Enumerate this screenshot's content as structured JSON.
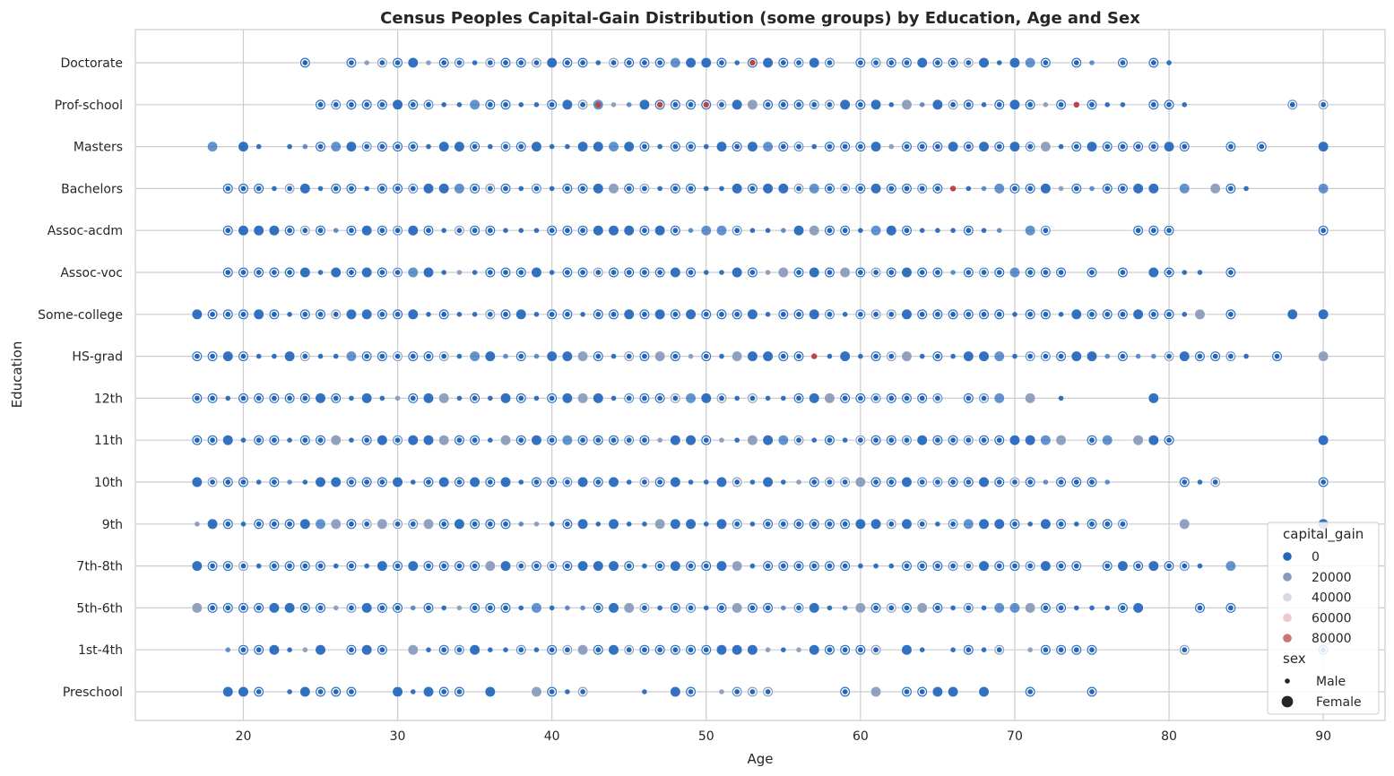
{
  "chart_data": {
    "type": "scatter",
    "title": "Census Peoples Capital-Gain Distribution (some groups) by Education, Age and Sex",
    "xlabel": "Age",
    "ylabel": "Education",
    "xlim": [
      13,
      94
    ],
    "x_ticks": [
      20,
      30,
      40,
      50,
      60,
      70,
      80,
      90
    ],
    "categories": [
      "Doctorate",
      "Prof-school",
      "Masters",
      "Bachelors",
      "Assoc-acdm",
      "Assoc-voc",
      "Some-college",
      "HS-grad",
      "12th",
      "11th",
      "10th",
      "9th",
      "7th-8th",
      "5th-6th",
      "1st-4th",
      "Preschool"
    ],
    "grid": true,
    "colors": {
      "zero_gain": "#2266bb",
      "mid_gain": "#8899bb",
      "high_gain": "#bb4444",
      "grid": "#cccccc",
      "axis_frame": "#cccccc"
    },
    "series": [
      {
        "category": "Doctorate",
        "ages": [
          24,
          27,
          28,
          29,
          30,
          31,
          32,
          33,
          34,
          35,
          36,
          37,
          38,
          39,
          40,
          41,
          42,
          43,
          44,
          45,
          46,
          47,
          48,
          49,
          50,
          51,
          52,
          53,
          54,
          55,
          56,
          57,
          58,
          60,
          61,
          62,
          63,
          64,
          65,
          66,
          67,
          68,
          69,
          70,
          71,
          72,
          74,
          75,
          77,
          79,
          80
        ],
        "high_gain_ages": [
          53
        ]
      },
      {
        "category": "Prof-school",
        "ages": [
          25,
          26,
          27,
          28,
          29,
          30,
          31,
          32,
          33,
          34,
          35,
          36,
          37,
          38,
          39,
          40,
          41,
          42,
          43,
          44,
          45,
          46,
          47,
          48,
          49,
          50,
          51,
          52,
          53,
          54,
          55,
          56,
          57,
          58,
          59,
          60,
          61,
          62,
          63,
          64,
          65,
          66,
          67,
          68,
          69,
          70,
          71,
          72,
          73,
          74,
          75,
          76,
          77,
          79,
          80,
          81,
          88,
          90
        ],
        "high_gain_ages": [
          43,
          47,
          50,
          74
        ]
      },
      {
        "category": "Masters",
        "ages": [
          18,
          20,
          21,
          23,
          24,
          25,
          26,
          27,
          28,
          29,
          30,
          31,
          32,
          33,
          34,
          35,
          36,
          37,
          38,
          39,
          40,
          41,
          42,
          43,
          44,
          45,
          46,
          47,
          48,
          49,
          50,
          51,
          52,
          53,
          54,
          55,
          56,
          57,
          58,
          59,
          60,
          61,
          62,
          63,
          64,
          65,
          66,
          67,
          68,
          69,
          70,
          71,
          72,
          73,
          74,
          75,
          76,
          77,
          78,
          79,
          80,
          81,
          84,
          86,
          90
        ],
        "high_gain_ages": []
      },
      {
        "category": "Bachelors",
        "ages": [
          19,
          20,
          21,
          22,
          23,
          24,
          25,
          26,
          27,
          28,
          29,
          30,
          31,
          32,
          33,
          34,
          35,
          36,
          37,
          38,
          39,
          40,
          41,
          42,
          43,
          44,
          45,
          46,
          47,
          48,
          49,
          50,
          51,
          52,
          53,
          54,
          55,
          56,
          57,
          58,
          59,
          60,
          61,
          62,
          63,
          64,
          65,
          66,
          67,
          68,
          69,
          70,
          71,
          72,
          73,
          74,
          75,
          76,
          77,
          78,
          79,
          81,
          83,
          84,
          85,
          90
        ],
        "high_gain_ages": [
          66
        ]
      },
      {
        "category": "Assoc-acdm",
        "ages": [
          19,
          20,
          21,
          22,
          23,
          24,
          25,
          26,
          27,
          28,
          29,
          30,
          31,
          32,
          33,
          34,
          35,
          36,
          37,
          38,
          39,
          40,
          41,
          42,
          43,
          44,
          45,
          46,
          47,
          48,
          49,
          50,
          51,
          52,
          53,
          54,
          55,
          56,
          57,
          58,
          59,
          60,
          61,
          62,
          63,
          64,
          65,
          66,
          67,
          68,
          69,
          71,
          72,
          78,
          79,
          80,
          90
        ],
        "high_gain_ages": []
      },
      {
        "category": "Assoc-voc",
        "ages": [
          19,
          20,
          21,
          22,
          23,
          24,
          25,
          26,
          27,
          28,
          29,
          30,
          31,
          32,
          33,
          34,
          35,
          36,
          37,
          38,
          39,
          40,
          41,
          42,
          43,
          44,
          45,
          46,
          47,
          48,
          49,
          50,
          51,
          52,
          53,
          54,
          55,
          56,
          57,
          58,
          59,
          60,
          61,
          62,
          63,
          64,
          65,
          66,
          67,
          68,
          69,
          70,
          71,
          72,
          73,
          75,
          77,
          79,
          80,
          81,
          82,
          84
        ],
        "high_gain_ages": []
      },
      {
        "category": "Some-college",
        "ages": [
          17,
          18,
          19,
          20,
          21,
          22,
          23,
          24,
          25,
          26,
          27,
          28,
          29,
          30,
          31,
          32,
          33,
          34,
          35,
          36,
          37,
          38,
          39,
          40,
          41,
          42,
          43,
          44,
          45,
          46,
          47,
          48,
          49,
          50,
          51,
          52,
          53,
          54,
          55,
          56,
          57,
          58,
          59,
          60,
          61,
          62,
          63,
          64,
          65,
          66,
          67,
          68,
          69,
          70,
          71,
          72,
          73,
          74,
          75,
          76,
          77,
          78,
          79,
          80,
          81,
          82,
          84,
          88,
          90
        ],
        "high_gain_ages": []
      },
      {
        "category": "HS-grad",
        "ages": [
          17,
          18,
          19,
          20,
          21,
          22,
          23,
          24,
          25,
          26,
          27,
          28,
          29,
          30,
          31,
          32,
          33,
          34,
          35,
          36,
          37,
          38,
          39,
          40,
          41,
          42,
          43,
          44,
          45,
          46,
          47,
          48,
          49,
          50,
          51,
          52,
          53,
          54,
          55,
          56,
          57,
          58,
          59,
          60,
          61,
          62,
          63,
          64,
          65,
          66,
          67,
          68,
          69,
          70,
          71,
          72,
          73,
          74,
          75,
          76,
          77,
          78,
          79,
          80,
          81,
          82,
          83,
          84,
          85,
          87,
          90
        ],
        "high_gain_ages": [
          57
        ]
      },
      {
        "category": "12th",
        "ages": [
          17,
          18,
          19,
          20,
          21,
          22,
          23,
          24,
          25,
          26,
          27,
          28,
          29,
          30,
          31,
          32,
          33,
          34,
          35,
          36,
          37,
          38,
          39,
          40,
          41,
          42,
          43,
          44,
          45,
          46,
          47,
          48,
          49,
          50,
          51,
          52,
          53,
          54,
          55,
          56,
          57,
          58,
          59,
          60,
          61,
          62,
          63,
          64,
          65,
          67,
          68,
          69,
          71,
          73,
          79
        ],
        "high_gain_ages": []
      },
      {
        "category": "11th",
        "ages": [
          17,
          18,
          19,
          20,
          21,
          22,
          23,
          24,
          25,
          26,
          27,
          28,
          29,
          30,
          31,
          32,
          33,
          34,
          35,
          36,
          37,
          38,
          39,
          40,
          41,
          42,
          43,
          44,
          45,
          46,
          47,
          48,
          49,
          50,
          51,
          52,
          53,
          54,
          55,
          56,
          57,
          58,
          59,
          60,
          61,
          62,
          63,
          64,
          65,
          66,
          67,
          68,
          69,
          70,
          71,
          72,
          73,
          75,
          76,
          78,
          79,
          80,
          90
        ],
        "high_gain_ages": []
      },
      {
        "category": "10th",
        "ages": [
          17,
          18,
          19,
          20,
          21,
          22,
          23,
          24,
          25,
          26,
          27,
          28,
          29,
          30,
          31,
          32,
          33,
          34,
          35,
          36,
          37,
          38,
          39,
          40,
          41,
          42,
          43,
          44,
          45,
          46,
          47,
          48,
          49,
          50,
          51,
          52,
          53,
          54,
          55,
          56,
          57,
          58,
          59,
          60,
          61,
          62,
          63,
          64,
          65,
          66,
          67,
          68,
          69,
          70,
          71,
          72,
          73,
          74,
          75,
          76,
          81,
          82,
          83,
          90
        ],
        "high_gain_ages": []
      },
      {
        "category": "9th",
        "ages": [
          17,
          18,
          19,
          20,
          21,
          22,
          23,
          24,
          25,
          26,
          27,
          28,
          29,
          30,
          31,
          32,
          33,
          34,
          35,
          36,
          37,
          38,
          39,
          40,
          41,
          42,
          43,
          44,
          45,
          46,
          47,
          48,
          49,
          50,
          51,
          52,
          53,
          54,
          55,
          56,
          57,
          58,
          59,
          60,
          61,
          62,
          63,
          64,
          65,
          66,
          67,
          68,
          69,
          70,
          71,
          72,
          73,
          74,
          75,
          76,
          77,
          81,
          90
        ],
        "high_gain_ages": []
      },
      {
        "category": "7th-8th",
        "ages": [
          17,
          18,
          19,
          20,
          21,
          22,
          23,
          24,
          25,
          26,
          27,
          28,
          29,
          30,
          31,
          32,
          33,
          34,
          35,
          36,
          37,
          38,
          39,
          40,
          41,
          42,
          43,
          44,
          45,
          46,
          47,
          48,
          49,
          50,
          51,
          52,
          53,
          54,
          55,
          56,
          57,
          58,
          59,
          60,
          61,
          62,
          63,
          64,
          65,
          66,
          67,
          68,
          69,
          70,
          71,
          72,
          73,
          74,
          76,
          77,
          78,
          79,
          80,
          81,
          82,
          84
        ],
        "high_gain_ages": []
      },
      {
        "category": "5th-6th",
        "ages": [
          17,
          18,
          19,
          20,
          21,
          22,
          23,
          24,
          25,
          26,
          27,
          28,
          29,
          30,
          31,
          32,
          33,
          34,
          35,
          36,
          37,
          38,
          39,
          40,
          41,
          42,
          43,
          44,
          45,
          46,
          47,
          48,
          49,
          50,
          51,
          52,
          53,
          54,
          55,
          56,
          57,
          58,
          59,
          60,
          61,
          62,
          63,
          64,
          65,
          66,
          67,
          68,
          69,
          70,
          71,
          72,
          73,
          74,
          75,
          76,
          77,
          78,
          82,
          84
        ],
        "high_gain_ages": []
      },
      {
        "category": "1st-4th",
        "ages": [
          19,
          20,
          21,
          22,
          23,
          24,
          25,
          27,
          28,
          29,
          31,
          32,
          33,
          34,
          35,
          36,
          37,
          38,
          39,
          40,
          41,
          42,
          43,
          44,
          45,
          46,
          47,
          48,
          49,
          50,
          51,
          52,
          53,
          54,
          55,
          56,
          57,
          58,
          59,
          60,
          61,
          63,
          64,
          66,
          67,
          68,
          69,
          71,
          72,
          73,
          74,
          75,
          81,
          90
        ],
        "high_gain_ages": []
      },
      {
        "category": "Preschool",
        "ages": [
          19,
          20,
          21,
          23,
          24,
          25,
          26,
          27,
          30,
          31,
          32,
          33,
          34,
          36,
          39,
          40,
          41,
          42,
          46,
          48,
          49,
          51,
          52,
          53,
          54,
          59,
          61,
          63,
          64,
          65,
          66,
          68,
          71,
          75
        ],
        "high_gain_ages": []
      }
    ],
    "legend": {
      "placement": "bottom-right",
      "hue_title": "capital_gain",
      "hue_entries": [
        {
          "label": "0",
          "color": "#2266bb"
        },
        {
          "label": "20000",
          "color": "#8899bb"
        },
        {
          "label": "40000",
          "color": "#d8d8e2"
        },
        {
          "label": "60000",
          "color": "#eacaca"
        },
        {
          "label": "80000",
          "color": "#c77777"
        }
      ],
      "size_title": "sex",
      "size_entries": [
        {
          "label": "Male",
          "size": "small"
        },
        {
          "label": "Female",
          "size": "large"
        }
      ]
    }
  }
}
